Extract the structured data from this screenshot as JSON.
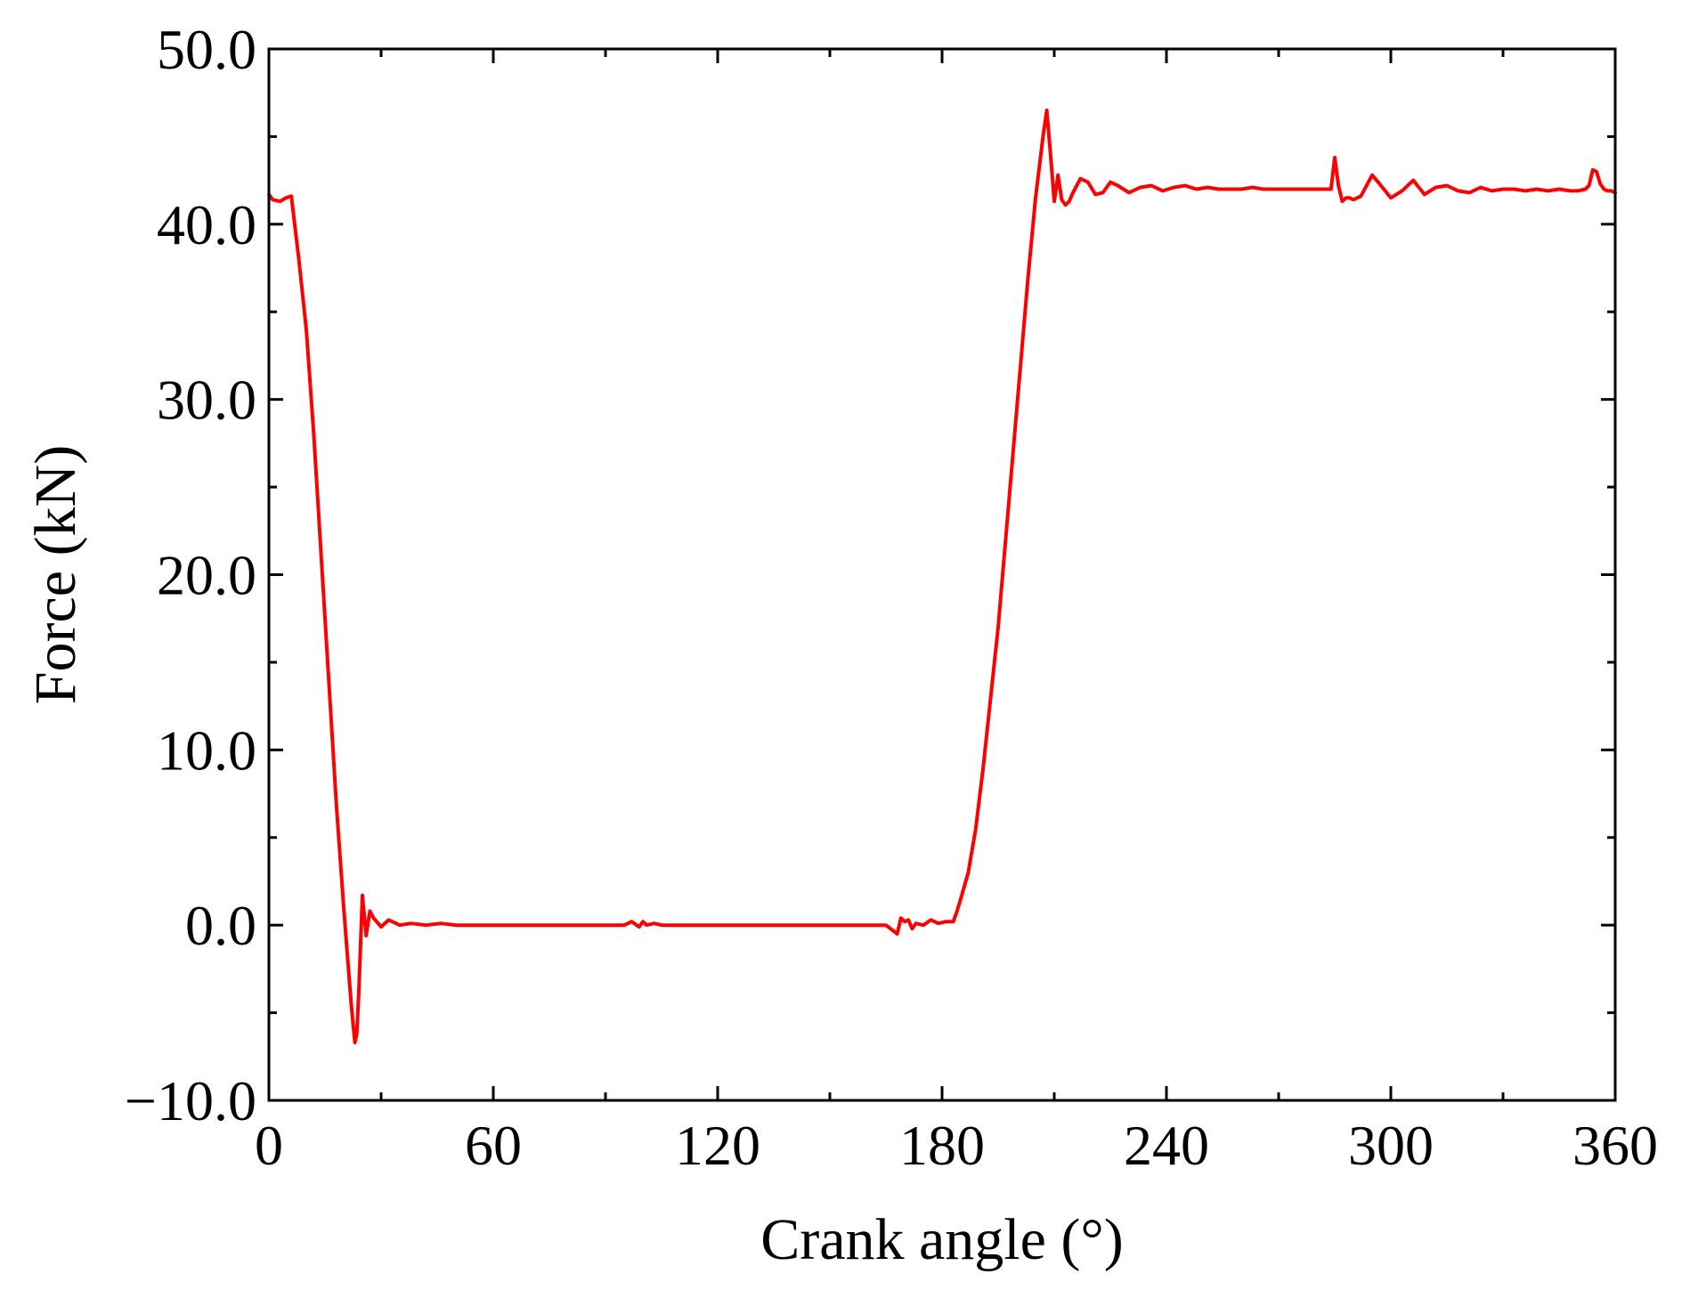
{
  "chart_data": {
    "type": "line",
    "xlabel": "Crank angle (°)",
    "ylabel": "Force (kN)",
    "xlim": [
      0,
      360
    ],
    "ylim": [
      -10,
      50
    ],
    "x_ticks": [
      0,
      60,
      120,
      180,
      240,
      300,
      360
    ],
    "x_tick_labels": [
      "0",
      "60",
      "120",
      "180",
      "240",
      "300",
      "360"
    ],
    "y_ticks": [
      -10,
      0,
      10,
      20,
      30,
      40,
      50
    ],
    "y_tick_labels": [
      "−10.0",
      "0.0",
      "10.0",
      "20.0",
      "30.0",
      "40.0",
      "50.0"
    ],
    "grid": false,
    "series": [
      {
        "color": "#ff0000",
        "x": [
          0,
          1,
          3,
          4.5,
          6,
          8,
          10,
          12,
          14,
          16,
          18,
          20,
          22,
          23,
          23.5,
          24,
          25,
          26,
          27,
          28,
          30,
          32,
          35,
          38,
          42,
          46,
          50,
          55,
          60,
          70,
          80,
          90,
          95,
          97,
          99,
          100,
          101,
          103,
          105,
          110,
          120,
          130,
          140,
          150,
          160,
          165,
          168,
          169,
          170,
          171,
          172,
          173,
          175,
          177,
          179,
          181,
          183,
          184,
          185,
          187,
          189,
          191,
          193,
          195,
          197,
          199,
          201,
          203,
          205,
          207,
          208,
          209,
          210,
          211,
          212,
          213,
          214,
          215,
          217,
          219,
          221,
          223,
          225,
          227,
          230,
          233,
          236,
          239,
          242,
          245,
          248,
          251,
          254,
          257,
          260,
          263,
          266,
          270,
          275,
          280,
          284,
          285,
          286,
          287,
          288,
          289,
          290,
          292,
          295,
          297,
          300,
          303,
          306,
          309,
          312,
          315,
          318,
          321,
          324,
          327,
          330,
          333,
          336,
          339,
          342,
          345,
          348,
          350,
          352,
          353,
          354,
          355,
          356,
          357,
          358,
          359,
          360
        ],
        "y": [
          41.7,
          41.4,
          41.3,
          41.5,
          41.6,
          38.0,
          34.0,
          28.0,
          21.0,
          14.0,
          7.0,
          1.0,
          -4.5,
          -6.7,
          -6.2,
          -4.0,
          1.7,
          -0.6,
          0.8,
          0.4,
          -0.1,
          0.3,
          0.0,
          0.1,
          0.0,
          0.1,
          0.0,
          0.0,
          0.0,
          0.0,
          0.0,
          0.0,
          0.0,
          0.2,
          -0.1,
          0.2,
          0.0,
          0.1,
          0.0,
          0.0,
          0.0,
          0.0,
          0.0,
          0.0,
          0.0,
          0.0,
          -0.5,
          0.4,
          0.2,
          0.3,
          -0.2,
          0.1,
          0.0,
          0.3,
          0.1,
          0.2,
          0.2,
          0.8,
          1.5,
          3.0,
          5.5,
          9.0,
          13.0,
          17.0,
          22.0,
          27.0,
          32.0,
          37.0,
          41.5,
          45.0,
          46.5,
          44.0,
          41.3,
          42.8,
          41.4,
          41.1,
          41.3,
          41.8,
          42.6,
          42.4,
          41.7,
          41.8,
          42.4,
          42.2,
          41.8,
          42.1,
          42.2,
          41.9,
          42.1,
          42.2,
          42.0,
          42.1,
          42.0,
          42.0,
          42.0,
          42.1,
          42.0,
          42.0,
          42.0,
          42.0,
          42.0,
          43.8,
          42.2,
          41.3,
          41.5,
          41.5,
          41.4,
          41.6,
          42.8,
          42.3,
          41.5,
          41.9,
          42.5,
          41.7,
          42.1,
          42.2,
          41.9,
          41.8,
          42.1,
          41.9,
          42.0,
          42.0,
          41.9,
          42.0,
          41.9,
          42.0,
          41.9,
          41.9,
          42.0,
          42.2,
          43.1,
          43.0,
          42.3,
          42.0,
          41.9,
          41.9,
          41.8
        ]
      }
    ]
  }
}
